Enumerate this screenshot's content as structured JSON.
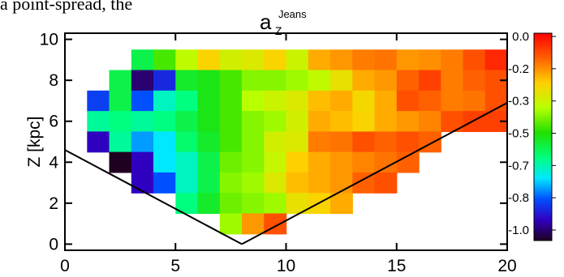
{
  "page_text": "a point-spread, the",
  "chart_data": {
    "type": "heatmap",
    "title": {
      "main": "a",
      "subscript": "Z",
      "superscript": "Jeans"
    },
    "xlabel": "",
    "ylabel": "Z [kpc]",
    "xlim": [
      0,
      20
    ],
    "ylim": [
      -0.3,
      10.3
    ],
    "x_ticks": [
      "0",
      "5",
      "10",
      "15",
      "20"
    ],
    "y_ticks": [
      "0",
      "2",
      "4",
      "6",
      "8",
      "10"
    ],
    "cell_width": 1,
    "cell_height": 1,
    "colorbar": {
      "range": [
        -1.0,
        0.0
      ],
      "ticks": [
        "0.0",
        "-0.2",
        "-0.3",
        "-0.5",
        "-0.7",
        "-0.8",
        "-1.0"
      ],
      "colormap": "rainbow (violet at -1.0, red at 0.0)"
    },
    "boundary_lines": [
      {
        "from": [
          0,
          4.6
        ],
        "to": [
          8,
          0
        ]
      },
      {
        "from": [
          8,
          0
        ],
        "to": [
          20,
          6.9
        ]
      }
    ],
    "rows": [
      {
        "z": 9,
        "x_start": 3,
        "values": [
          -0.55,
          -0.45,
          -0.35,
          -0.25,
          -0.32,
          -0.3,
          -0.25,
          -0.33,
          -0.2,
          -0.18,
          -0.15,
          -0.14,
          -0.18,
          -0.17,
          -0.15,
          -0.1,
          -0.05,
          -0.05
        ]
      },
      {
        "z": 8,
        "x_start": 2,
        "values": [
          -0.55,
          -0.95,
          -0.85,
          -0.52,
          -0.5,
          -0.45,
          -0.4,
          -0.4,
          -0.38,
          -0.35,
          -0.28,
          -0.2,
          -0.18,
          -0.12,
          -0.08,
          -0.15,
          -0.12,
          -0.1,
          -0.05,
          -0.05,
          -0.05
        ]
      },
      {
        "z": 7,
        "x_start": 1,
        "values": [
          -0.82,
          -0.55,
          -0.8,
          -0.65,
          -0.6,
          -0.5,
          -0.45,
          -0.36,
          -0.33,
          -0.3,
          -0.22,
          -0.2,
          -0.26,
          -0.2,
          -0.1,
          -0.12,
          -0.15,
          -0.14,
          -0.1,
          -0.05,
          -0.06
        ]
      },
      {
        "z": 6,
        "x_start": 1,
        "values": [
          -0.62,
          -0.6,
          -0.62,
          -0.6,
          -0.55,
          -0.5,
          -0.45,
          -0.4,
          -0.38,
          -0.32,
          -0.2,
          -0.22,
          -0.25,
          -0.2,
          -0.18,
          -0.16,
          -0.1,
          -0.08,
          -0.08
        ]
      },
      {
        "z": 5,
        "x_start": 1,
        "values": [
          -0.9,
          -0.62,
          -0.75,
          -0.7,
          -0.58,
          -0.52,
          -0.45,
          -0.4,
          -0.32,
          -0.3,
          -0.15,
          -0.14,
          -0.1,
          -0.12,
          -0.1,
          -0.12
        ]
      },
      {
        "z": 4,
        "x_start": 2,
        "values": [
          -1.0,
          -0.9,
          -0.7,
          -0.65,
          -0.55,
          -0.42,
          -0.4,
          -0.34,
          -0.24,
          -0.2,
          -0.18,
          -0.16,
          -0.14,
          -0.12
        ]
      },
      {
        "z": 3,
        "x_start": 3,
        "values": [
          -0.9,
          -0.8,
          -0.65,
          -0.55,
          -0.4,
          -0.38,
          -0.3,
          -0.22,
          -0.2,
          -0.18,
          -0.12,
          -0.1
        ]
      },
      {
        "z": 2,
        "x_start": 5,
        "values": [
          -0.6,
          -0.52,
          -0.42,
          -0.4,
          -0.38,
          -0.28,
          -0.25,
          -0.2
        ]
      },
      {
        "z": 1,
        "x_start": 7,
        "values": [
          -0.38,
          -0.18,
          -0.1
        ]
      }
    ]
  }
}
